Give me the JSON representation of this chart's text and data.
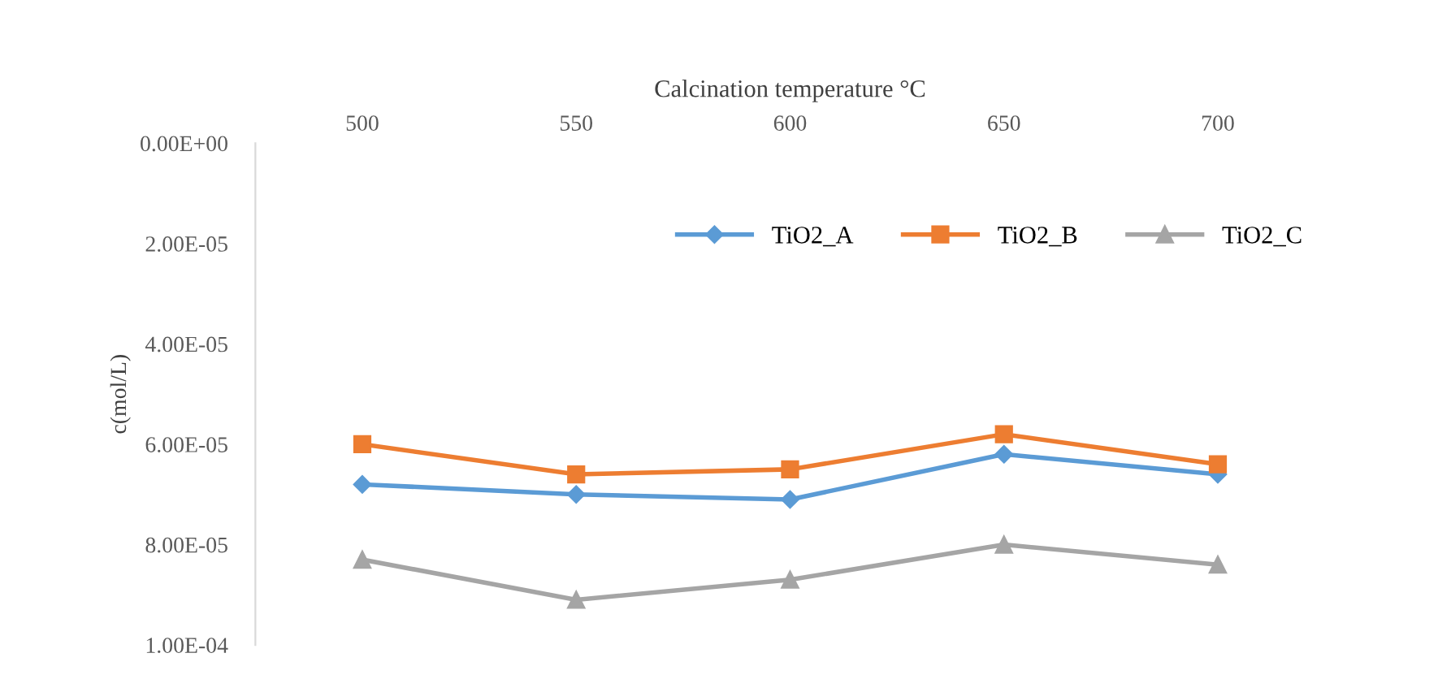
{
  "chart_data": {
    "type": "line",
    "xlabel": "Calcination temperature °C",
    "ylabel": "c(mol/L)",
    "categories": [
      "500",
      "550",
      "600",
      "650",
      "700"
    ],
    "series": [
      {
        "name": "TiO2_A",
        "color": "#5b9bd5",
        "marker": "diamond",
        "values": [
          6.8e-05,
          7e-05,
          7.1e-05,
          6.2e-05,
          6.6e-05
        ]
      },
      {
        "name": "TiO2_B",
        "color": "#ed7d31",
        "marker": "square",
        "values": [
          6e-05,
          6.6e-05,
          6.5e-05,
          5.8e-05,
          6.4e-05
        ]
      },
      {
        "name": "TiO2_C",
        "color": "#a5a5a5",
        "marker": "triangle",
        "values": [
          8.3e-05,
          9.1e-05,
          8.7e-05,
          8e-05,
          8.4e-05
        ]
      }
    ],
    "ylim": [
      0.0001,
      0
    ],
    "yticks": [
      {
        "value": 0,
        "label": "0.00E+00"
      },
      {
        "value": 2e-05,
        "label": "2.00E-05"
      },
      {
        "value": 4e-05,
        "label": "4.00E-05"
      },
      {
        "value": 6e-05,
        "label": "6.00E-05"
      },
      {
        "value": 8e-05,
        "label": "8.00E-05"
      },
      {
        "value": 0.0001,
        "label": "1.00E-04"
      }
    ],
    "grid": false,
    "legend": "top right",
    "line_style": "solid"
  }
}
